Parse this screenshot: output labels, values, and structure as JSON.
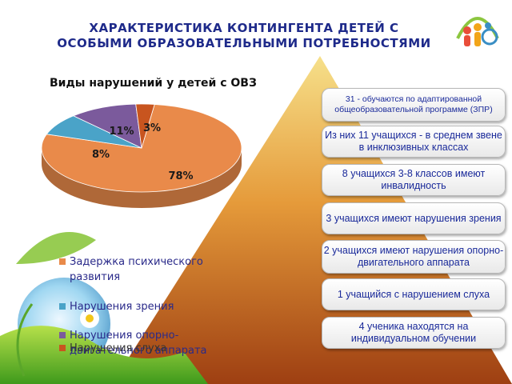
{
  "slide": {
    "title": "ХАРАКТЕРИСТИКА  КОНТИНГЕНТА  ДЕТЕЙ С ОСОБЫМИ  ОБРАЗОВАТЕЛЬНЫМИ ПОТРЕБНОСТЯМИ"
  },
  "chart_data": {
    "type": "pie",
    "title": "Виды нарушений у детей с ОВЗ",
    "categories": [
      "Задержка психического развития",
      "Нарушения зрения",
      "Нарушения опорно-двигательного аппарата",
      "Нарушения слуха"
    ],
    "values": [
      78,
      8,
      11,
      3
    ],
    "labels": [
      "78%",
      "8%",
      "11%",
      "3%"
    ],
    "colors": [
      "#e98a4a",
      "#4aa3c8",
      "#7b5a9c",
      "#c8551f"
    ],
    "legend_position": "bottom-left"
  },
  "legend": {
    "items": [
      {
        "text": "Задержка психического развития",
        "color": "#e98a4a"
      },
      {
        "text": "Нарушения зрения",
        "color": "#4aa3c8"
      },
      {
        "text": "Нарушения опорно-двигательного аппарата",
        "color": "#7b5a9c"
      },
      {
        "text": "Нарушения слуха",
        "color": "#c8551f"
      }
    ]
  },
  "info_boxes": [
    "31 -  обучаются по адаптированной общеобразовательной программе (ЗПР)",
    "Из них 11 учащихся  - в среднем звене в инклюзивных классах",
    "8 учащихся  3-8 классов имеют инвалидность",
    "3 учащихся имеют нарушения зрения",
    "2 учащихся имеют нарушения опорно-двигательного аппарата",
    "1 учащийся с нарушением слуха",
    "4 ученика находятся на индивидуальном обучении"
  ],
  "colors": {
    "title": "#1e2a8a",
    "box_text": "#1a2a9a",
    "pyramid_top": "#f2d06a",
    "pyramid_bottom": "#b5521a"
  }
}
